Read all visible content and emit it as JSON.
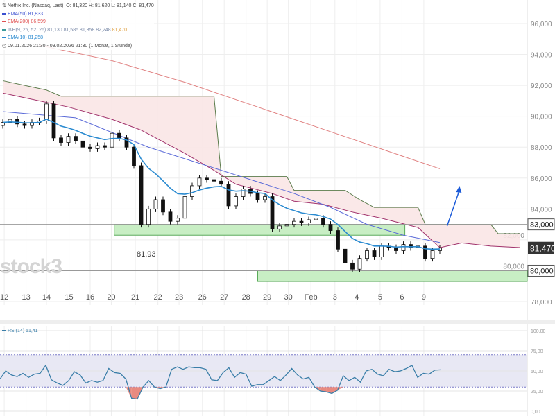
{
  "legend": {
    "title": "Netflix Inc. (Nasdaq, Last)",
    "ohlc": "O: 81,320  H: 81,620  L: 81,140  C: 81,470",
    "ema50": {
      "label": "EMA(50)",
      "value": "81,833",
      "color": "#3a4fd0"
    },
    "ema200": {
      "label": "EMA(200)",
      "value": "86,599",
      "color": "#e05050"
    },
    "ikh": {
      "label": "IKH(9, 26, 52, 26)",
      "values": "81,130  81,585  81,358  82,248",
      "last": "81,470",
      "color": "#3a9a9a"
    },
    "ema10": {
      "label": "EMA(10)",
      "value": "81,258",
      "color": "#2a8ad0"
    },
    "range": "09.01.2026 21:30 - 09.02.2026 21:30  (1 Monat, 1 Stunde)"
  },
  "watermark": "stock3",
  "annotation_low": "81,93",
  "chart_data": [
    {
      "type": "candlestick",
      "title": "Netflix Inc. (Nasdaq, Last)",
      "ylim": [
        77,
        97
      ],
      "y_ticks": [
        "96,000",
        "94,000",
        "92,000",
        "90,000",
        "88,000",
        "86,000",
        "84,000",
        "82,000",
        "80,000",
        "78,000"
      ],
      "y_tick_values": [
        96,
        94,
        92,
        90,
        88,
        86,
        84,
        82,
        80,
        78
      ],
      "x_ticks": [
        "12",
        "13",
        "14",
        "15",
        "16",
        "20",
        "21",
        "22",
        "23",
        "26",
        "27",
        "28",
        "29",
        "30",
        "Feb",
        "3",
        "4",
        "5",
        "6",
        "9"
      ],
      "x_tick_bars": [
        0.2,
        3.2,
        6,
        9.1,
        12,
        14.9,
        18.2,
        21.3,
        24.2,
        27.4,
        30.4,
        33.4,
        36.3,
        39.2,
        42.3,
        45.6,
        48.6,
        51.8,
        54.8,
        57.8
      ],
      "closes": [
        89.6,
        89.8,
        89.5,
        89.4,
        89.6,
        89.7,
        90.8,
        88.6,
        88.3,
        88.7,
        88.4,
        88.0,
        87.9,
        88.1,
        88.0,
        88.9,
        88.6,
        88.0,
        86.8,
        83.0,
        84.0,
        84.6,
        83.8,
        83.2,
        83.4,
        84.8,
        85.5,
        86.0,
        85.9,
        85.8,
        85.6,
        84.2,
        84.8,
        85.3,
        85.0,
        84.6,
        84.8,
        82.7,
        82.9,
        83.0,
        83.2,
        83.1,
        83.3,
        83.4,
        83.0,
        82.6,
        81.4,
        80.5,
        80.1,
        80.8,
        81.3,
        80.9,
        81.6,
        81.5,
        81.3,
        81.7,
        81.5,
        81.6,
        80.8,
        81.3,
        81.47
      ],
      "first_open": 89.4,
      "ema50": [
        [
          0,
          90.3
        ],
        [
          10,
          89.9
        ],
        [
          20,
          88.0
        ],
        [
          30,
          86.5
        ],
        [
          40,
          85.0
        ],
        [
          45,
          84.1
        ],
        [
          50,
          83.0
        ],
        [
          55,
          82.3
        ],
        [
          60,
          81.83
        ]
      ],
      "ema200": [
        [
          5,
          94.6
        ],
        [
          15,
          93.6
        ],
        [
          25,
          92.2
        ],
        [
          35,
          90.6
        ],
        [
          45,
          89.0
        ],
        [
          55,
          87.4
        ],
        [
          60,
          86.6
        ]
      ],
      "cloud_upper": [
        [
          0,
          92.3
        ],
        [
          6,
          91.7
        ],
        [
          8,
          91.3
        ],
        [
          29,
          91.3
        ],
        [
          30,
          86.1
        ],
        [
          39,
          86.1
        ],
        [
          40,
          85.2
        ],
        [
          47,
          85.2
        ],
        [
          49,
          84.6
        ],
        [
          51,
          84.1
        ],
        [
          57,
          84.1
        ],
        [
          58,
          83.0
        ],
        [
          67,
          83.0
        ],
        [
          68,
          82.4
        ],
        [
          71,
          82.4
        ]
      ],
      "cloud_lower": [
        [
          0,
          91.5
        ],
        [
          9,
          90.6
        ],
        [
          15,
          89.8
        ],
        [
          19,
          89.1
        ],
        [
          25,
          87.6
        ],
        [
          29,
          86.5
        ],
        [
          32,
          85.6
        ],
        [
          37,
          85.0
        ],
        [
          40,
          84.5
        ],
        [
          44,
          84.3
        ],
        [
          48,
          83.8
        ],
        [
          52,
          83.4
        ],
        [
          57,
          82.8
        ],
        [
          60,
          81.5
        ],
        [
          63,
          81.8
        ],
        [
          67,
          81.6
        ],
        [
          71,
          81.5
        ]
      ],
      "zones": [
        {
          "from_bar": 15.3,
          "to_bar": 55.2,
          "low": 82.3,
          "high": 83.0
        },
        {
          "from_bar": 35,
          "to_bar": 72,
          "low": 79.3,
          "high": 80.0
        }
      ],
      "hlines": [
        {
          "value": 83.0,
          "label": "83,000"
        },
        {
          "value": 80.0,
          "label": "80,000"
        }
      ],
      "last_price": {
        "value": 81.47,
        "label": "81,470"
      },
      "arrow": {
        "from": [
          61,
          82.9
        ],
        "to": [
          62.7,
          85.5
        ],
        "color": "#1a5ad8"
      }
    },
    {
      "type": "line",
      "title": "RSI(14)",
      "legend": "RSI(14) 51,41",
      "ylim": [
        0,
        100
      ],
      "y_ticks": [
        "100,00",
        "75,00",
        "50,00",
        "25,00",
        "0,00"
      ],
      "y_tick_values": [
        100,
        75,
        50,
        25,
        0
      ],
      "bands": [
        30,
        70
      ],
      "values": [
        40,
        50,
        45,
        43,
        47,
        42,
        46,
        47,
        57,
        39,
        35,
        32,
        38,
        49,
        45,
        35,
        38,
        36,
        38,
        53,
        48,
        47,
        40,
        16,
        15,
        30,
        38,
        30,
        28,
        30,
        52,
        55,
        52,
        55,
        54,
        54,
        52,
        39,
        38,
        48,
        54,
        42,
        48,
        46,
        31,
        33,
        33,
        38,
        43,
        38,
        45,
        53,
        45,
        40,
        42,
        30,
        25,
        24,
        22,
        26,
        44,
        38,
        42,
        36,
        50,
        52,
        46,
        44,
        52,
        49,
        50,
        53,
        57,
        42,
        47,
        46,
        51,
        51.41
      ]
    }
  ]
}
